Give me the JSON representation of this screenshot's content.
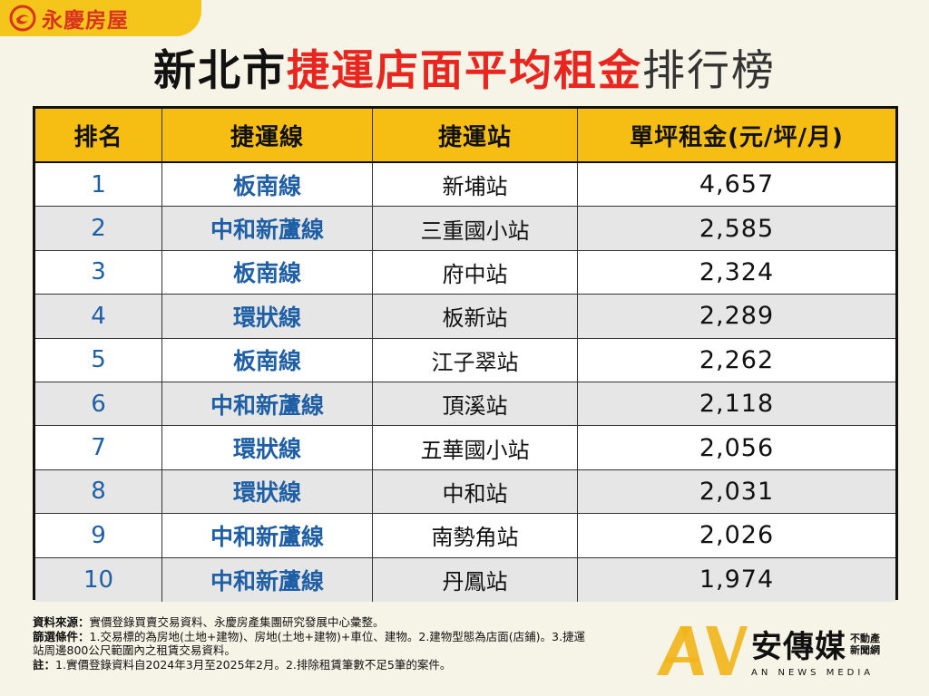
{
  "brand": {
    "name": "永慶房屋",
    "color": "#d9331f",
    "tab_color": "#f4c51a"
  },
  "title": {
    "part1": "新北市",
    "part2": "捷運店面平均租金",
    "part3": "排行榜"
  },
  "chart_data": {
    "type": "table",
    "columns": [
      "排名",
      "捷運線",
      "捷運站",
      "單坪租金(元/坪/月)"
    ],
    "rows": [
      {
        "rank": "1",
        "line": "板南線",
        "station": "新埔站",
        "rent": "4,657"
      },
      {
        "rank": "2",
        "line": "中和新蘆線",
        "station": "三重國小站",
        "rent": "2,585"
      },
      {
        "rank": "3",
        "line": "板南線",
        "station": "府中站",
        "rent": "2,324"
      },
      {
        "rank": "4",
        "line": "環狀線",
        "station": "板新站",
        "rent": "2,289"
      },
      {
        "rank": "5",
        "line": "板南線",
        "station": "江子翠站",
        "rent": "2,262"
      },
      {
        "rank": "6",
        "line": "中和新蘆線",
        "station": "頂溪站",
        "rent": "2,118"
      },
      {
        "rank": "7",
        "line": "環狀線",
        "station": "五華國小站",
        "rent": "2,056"
      },
      {
        "rank": "8",
        "line": "環狀線",
        "station": "中和站",
        "rent": "2,031"
      },
      {
        "rank": "9",
        "line": "中和新蘆線",
        "station": "南勢角站",
        "rent": "2,026"
      },
      {
        "rank": "10",
        "line": "中和新蘆線",
        "station": "丹鳳站",
        "rent": "1,974"
      }
    ],
    "colors": {
      "header": "#f6be12",
      "accent_text": "#1f5fa6",
      "title_red": "#e8261f",
      "alt_row": "#e6e6e6"
    }
  },
  "notes": {
    "source_label": "資料來源：",
    "source_text": "實價登錄買賣交易資料、永慶房產集團研究發展中心彙整。",
    "filter_label": "篩選條件：",
    "filter_text_1": "1.交易標的為房地(土地+建物)、房地(土地+建物)+車位、建物。2.建物型態為店面(店鋪)。3.捷運",
    "filter_text_2": "站周邊800公尺範圍內之租賃交易資料。",
    "note_label": "註：",
    "note_text": "1.實價登錄資料自2024年3月至2025年2月。2.排除租賃筆數不足5筆的案件。"
  },
  "watermark": {
    "name": "安傳媒",
    "sub_1": "不動產",
    "sub_2": "新聞網",
    "english": "AN NEWS MEDIA"
  }
}
